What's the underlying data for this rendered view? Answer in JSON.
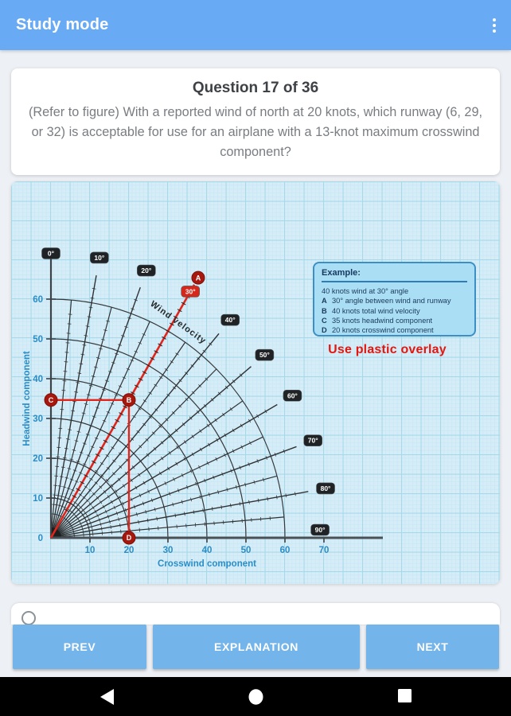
{
  "app_bar": {
    "title": "Study mode"
  },
  "question_card": {
    "title": "Question 17 of 36",
    "text": "(Refer to figure) With a reported wind of north at 20 knots, which runway (6, 29, or 32) is acceptable for use for an airplane with a 13-knot maximum crosswind component?"
  },
  "chart_data": {
    "type": "line",
    "variant": "wind-component-polar-chart",
    "xlabel": "Crosswind component",
    "ylabel": "Headwind component",
    "x_ticks": [
      10,
      20,
      30,
      40,
      50,
      60,
      70
    ],
    "y_ticks": [
      0,
      10,
      20,
      30,
      40,
      50,
      60
    ],
    "xlim": [
      0,
      85
    ],
    "ylim": [
      0,
      72
    ],
    "grid": true,
    "velocity_arcs_knots": [
      10,
      20,
      30,
      40,
      50,
      60
    ],
    "angle_lines_deg": [
      0,
      10,
      20,
      30,
      40,
      50,
      60,
      70,
      80,
      90
    ],
    "minor_angle_step_deg": 5,
    "highlighted_angle_deg": 30,
    "along_line_label": "Wind velocity",
    "overlay": {
      "wind_angle_deg": 30,
      "wind_speed_knots": 40,
      "headwind_component_knots": 35,
      "crosswind_component_knots": 20,
      "point_labels": [
        "A",
        "B",
        "C",
        "D"
      ]
    },
    "accent_color": "#e2251b",
    "point_color": "#a8170e",
    "badge_color": "#202325",
    "badge_highlight_color": "#d5281c",
    "axis_text_color": "#2a8dc7"
  },
  "example_box": {
    "title": "Example:",
    "intro": "40 knots wind at 30° angle",
    "items": [
      {
        "key": "A",
        "text": "30° angle between wind and runway"
      },
      {
        "key": "B",
        "text": "40 knots total wind velocity"
      },
      {
        "key": "C",
        "text": "35 knots headwind component"
      },
      {
        "key": "D",
        "text": "20 knots crosswind component"
      }
    ],
    "note": "Use plastic overlay"
  },
  "footer": {
    "prev": "PREV",
    "explanation": "EXPLANATION",
    "next": "NEXT"
  }
}
